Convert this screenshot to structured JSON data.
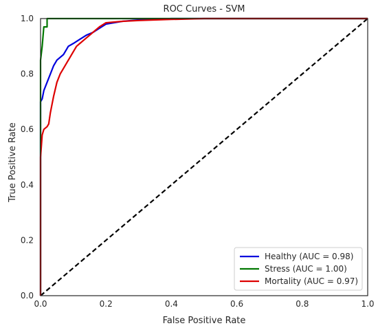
{
  "chart_data": {
    "type": "line",
    "title": "ROC Curves - SVM",
    "xlabel": "False Positive Rate",
    "ylabel": "True Positive Rate",
    "xlim": [
      0.0,
      1.0
    ],
    "ylim": [
      0.0,
      1.0
    ],
    "xticks": [
      "0.0",
      "0.2",
      "0.4",
      "0.6",
      "0.8",
      "1.0"
    ],
    "yticks": [
      "0.0",
      "0.2",
      "0.4",
      "0.6",
      "0.8",
      "1.0"
    ],
    "grid": false,
    "legend_position": "lower-right",
    "series": [
      {
        "name": "Healthy (AUC = 0.98)",
        "color": "#0000dd",
        "points": [
          [
            0,
            0
          ],
          [
            0,
            0.7
          ],
          [
            0.005,
            0.71
          ],
          [
            0.01,
            0.74
          ],
          [
            0.02,
            0.77
          ],
          [
            0.03,
            0.8
          ],
          [
            0.04,
            0.83
          ],
          [
            0.05,
            0.85
          ],
          [
            0.07,
            0.87
          ],
          [
            0.085,
            0.9
          ],
          [
            0.1,
            0.91
          ],
          [
            0.12,
            0.925
          ],
          [
            0.14,
            0.94
          ],
          [
            0.16,
            0.95
          ],
          [
            0.18,
            0.965
          ],
          [
            0.2,
            0.98
          ],
          [
            0.25,
            0.99
          ],
          [
            0.3,
            0.995
          ],
          [
            0.4,
            1.0
          ],
          [
            1.0,
            1.0
          ]
        ]
      },
      {
        "name": "Stress (AUC = 1.00)",
        "color": "#007700",
        "points": [
          [
            0,
            0
          ],
          [
            0,
            0.85
          ],
          [
            0.005,
            0.9
          ],
          [
            0.01,
            0.97
          ],
          [
            0.02,
            0.97
          ],
          [
            0.02,
            1.0
          ],
          [
            0.03,
            1.0
          ],
          [
            1.0,
            1.0
          ]
        ]
      },
      {
        "name": "Mortality (AUC = 0.97)",
        "color": "#dd0000",
        "points": [
          [
            0,
            0
          ],
          [
            0,
            0.5
          ],
          [
            0.005,
            0.58
          ],
          [
            0.01,
            0.6
          ],
          [
            0.02,
            0.61
          ],
          [
            0.025,
            0.62
          ],
          [
            0.03,
            0.66
          ],
          [
            0.04,
            0.72
          ],
          [
            0.05,
            0.77
          ],
          [
            0.06,
            0.8
          ],
          [
            0.07,
            0.82
          ],
          [
            0.08,
            0.84
          ],
          [
            0.09,
            0.86
          ],
          [
            0.1,
            0.88
          ],
          [
            0.11,
            0.9
          ],
          [
            0.12,
            0.91
          ],
          [
            0.14,
            0.93
          ],
          [
            0.16,
            0.95
          ],
          [
            0.18,
            0.97
          ],
          [
            0.2,
            0.985
          ],
          [
            0.25,
            0.99
          ],
          [
            0.3,
            0.993
          ],
          [
            0.4,
            0.997
          ],
          [
            0.5,
            1.0
          ],
          [
            1.0,
            1.0
          ]
        ]
      }
    ],
    "reference_line": {
      "color": "#000000",
      "style": "dashed",
      "points": [
        [
          0,
          0
        ],
        [
          1,
          1
        ]
      ]
    }
  }
}
